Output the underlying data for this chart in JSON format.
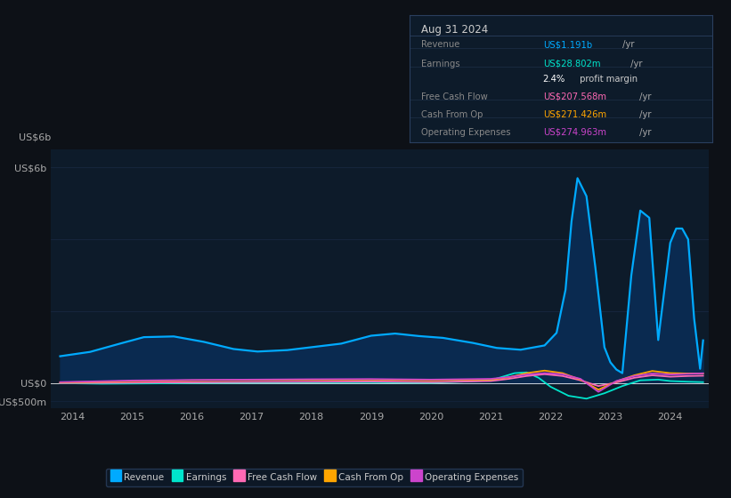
{
  "bg_color": "#0d1117",
  "plot_bg_color": "#0d1b2a",
  "grid_color": "#1e3050",
  "info_box": {
    "bg": "#0d1b2a",
    "border": "#2a3f5f",
    "title": "Aug 31 2024",
    "title_color": "#cccccc",
    "rows": [
      {
        "label": "Revenue",
        "value": "US$1.191b",
        "suffix": " /yr",
        "value_color": "#00aaff"
      },
      {
        "label": "Earnings",
        "value": "US$28.802m",
        "suffix": " /yr",
        "value_color": "#00e5cc"
      },
      {
        "label": "",
        "value": "2.4%",
        "suffix": " profit margin",
        "value_color": "#ffffff",
        "suffix_color": "#cccccc"
      },
      {
        "label": "Free Cash Flow",
        "value": "US$207.568m",
        "suffix": " /yr",
        "value_color": "#ff69b4"
      },
      {
        "label": "Cash From Op",
        "value": "US$271.426m",
        "suffix": " /yr",
        "value_color": "#ffa500"
      },
      {
        "label": "Operating Expenses",
        "value": "US$274.963m",
        "suffix": " /yr",
        "value_color": "#cc44cc"
      }
    ]
  },
  "ylabel_top": "US$6b",
  "ylabel_zero": "US$0",
  "ylabel_neg": "-US$500m",
  "x_ticks": [
    2014,
    2015,
    2016,
    2017,
    2018,
    2019,
    2020,
    2021,
    2022,
    2023,
    2024
  ],
  "ylim_min": -700000000,
  "ylim_max": 6500000000,
  "revenue_x": [
    2013.8,
    2014.3,
    2014.8,
    2015.2,
    2015.7,
    2016.2,
    2016.7,
    2017.1,
    2017.6,
    2018.0,
    2018.5,
    2019.0,
    2019.4,
    2019.8,
    2020.2,
    2020.7,
    2021.1,
    2021.5,
    2021.9,
    2022.1,
    2022.25,
    2022.35,
    2022.45,
    2022.6,
    2022.75,
    2022.9,
    2023.0,
    2023.1,
    2023.2,
    2023.35,
    2023.5,
    2023.65,
    2023.8,
    2024.0,
    2024.1,
    2024.2,
    2024.3,
    2024.4,
    2024.5,
    2024.55
  ],
  "revenue_y": [
    750000000,
    870000000,
    1100000000,
    1280000000,
    1300000000,
    1150000000,
    950000000,
    880000000,
    920000000,
    1000000000,
    1100000000,
    1320000000,
    1380000000,
    1310000000,
    1260000000,
    1120000000,
    980000000,
    930000000,
    1050000000,
    1400000000,
    2600000000,
    4500000000,
    5700000000,
    5200000000,
    3200000000,
    1000000000,
    580000000,
    380000000,
    280000000,
    3000000000,
    4800000000,
    4600000000,
    1200000000,
    3900000000,
    4300000000,
    4300000000,
    4000000000,
    1800000000,
    400000000,
    1191000000
  ],
  "earnings_x": [
    2013.8,
    2014.5,
    2015.0,
    2015.5,
    2016.0,
    2017.0,
    2018.0,
    2019.0,
    2020.0,
    2020.5,
    2021.0,
    2021.2,
    2021.4,
    2021.6,
    2021.8,
    2022.0,
    2022.3,
    2022.6,
    2022.9,
    2023.2,
    2023.5,
    2023.8,
    2024.0,
    2024.3,
    2024.55
  ],
  "earnings_y": [
    0,
    -15000000,
    -10000000,
    -5000000,
    5000000,
    15000000,
    20000000,
    25000000,
    10000000,
    40000000,
    80000000,
    180000000,
    280000000,
    300000000,
    150000000,
    -100000000,
    -350000000,
    -430000000,
    -280000000,
    -80000000,
    80000000,
    100000000,
    60000000,
    40000000,
    28802000
  ],
  "fcf_x": [
    2013.8,
    2014.5,
    2015.0,
    2016.0,
    2017.0,
    2018.0,
    2019.0,
    2020.0,
    2020.5,
    2021.0,
    2021.3,
    2021.6,
    2021.9,
    2022.2,
    2022.5,
    2022.8,
    2023.1,
    2023.4,
    2023.7,
    2024.0,
    2024.3,
    2024.55
  ],
  "fcf_y": [
    5000000,
    10000000,
    15000000,
    25000000,
    35000000,
    40000000,
    50000000,
    30000000,
    45000000,
    60000000,
    120000000,
    200000000,
    250000000,
    200000000,
    80000000,
    -80000000,
    20000000,
    150000000,
    220000000,
    180000000,
    200000000,
    207568000
  ],
  "cashop_x": [
    2013.8,
    2014.5,
    2015.0,
    2016.0,
    2017.0,
    2018.0,
    2019.0,
    2020.0,
    2020.5,
    2021.0,
    2021.3,
    2021.6,
    2021.9,
    2022.2,
    2022.5,
    2022.8,
    2023.1,
    2023.4,
    2023.7,
    2024.0,
    2024.3,
    2024.55
  ],
  "cashop_y": [
    20000000,
    40000000,
    60000000,
    80000000,
    90000000,
    95000000,
    100000000,
    80000000,
    95000000,
    100000000,
    160000000,
    280000000,
    350000000,
    280000000,
    100000000,
    -180000000,
    50000000,
    220000000,
    340000000,
    280000000,
    270000000,
    271426000
  ],
  "opex_x": [
    2013.8,
    2014.5,
    2015.0,
    2016.0,
    2017.0,
    2018.0,
    2019.0,
    2020.0,
    2020.5,
    2021.0,
    2021.3,
    2021.6,
    2021.9,
    2022.2,
    2022.5,
    2022.8,
    2023.1,
    2023.4,
    2023.7,
    2024.0,
    2024.3,
    2024.55
  ],
  "opex_y": [
    30000000,
    55000000,
    75000000,
    90000000,
    100000000,
    110000000,
    115000000,
    100000000,
    110000000,
    120000000,
    170000000,
    240000000,
    280000000,
    250000000,
    120000000,
    -240000000,
    60000000,
    200000000,
    270000000,
    240000000,
    260000000,
    274963000
  ],
  "revenue_color": "#00aaff",
  "revenue_fill": "#0a2a50",
  "earnings_color": "#00e5cc",
  "fcf_color": "#ff69b4",
  "cashop_color": "#ffa500",
  "opex_color": "#cc44cc",
  "legend": [
    {
      "label": "Revenue",
      "color": "#00aaff"
    },
    {
      "label": "Earnings",
      "color": "#00e5cc"
    },
    {
      "label": "Free Cash Flow",
      "color": "#ff69b4"
    },
    {
      "label": "Cash From Op",
      "color": "#ffa500"
    },
    {
      "label": "Operating Expenses",
      "color": "#cc44cc"
    }
  ]
}
